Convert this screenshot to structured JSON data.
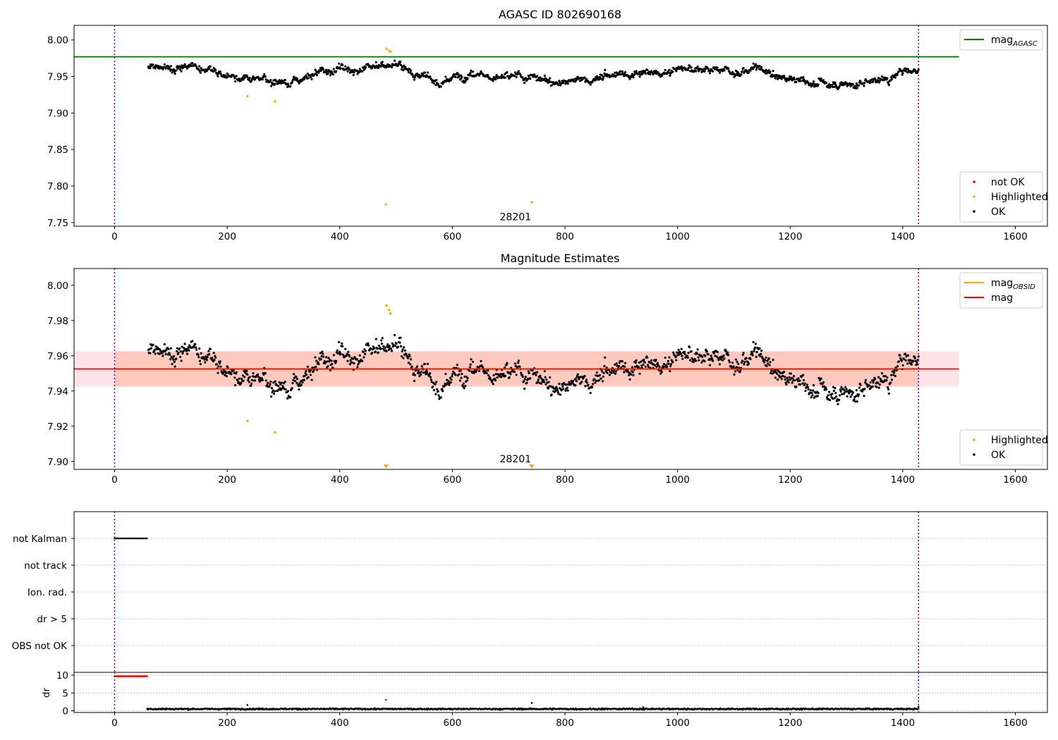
{
  "chart_data": [
    {
      "type": "scatter",
      "title": "AGASC ID 802690168",
      "xlabel": "",
      "ylabel": "",
      "xlim": [
        -72,
        1657
      ],
      "ylim": [
        7.745,
        8.02
      ],
      "xticks": [
        0,
        200,
        400,
        600,
        800,
        1000,
        1200,
        1400,
        1600
      ],
      "yticks": [
        7.75,
        7.8,
        7.85,
        7.9,
        7.95,
        8.0
      ],
      "ytick_labels": [
        "7.75",
        "7.80",
        "7.85",
        "7.90",
        "7.95",
        "8.00"
      ],
      "annotation": {
        "text": "28201",
        "x": 712,
        "y": 7.753
      },
      "obs_boundaries": [
        0,
        1428
      ],
      "hlines": [
        {
          "name_base": "mag",
          "name_sub": "AGASC",
          "value": 7.977,
          "xmin": -72,
          "xmax": 1500,
          "color": "#008000"
        }
      ],
      "series": [
        {
          "name": "not OK",
          "color": "#ff0000",
          "x": [],
          "y": []
        },
        {
          "name": "Highlighted",
          "color": "#ffa500",
          "x": [
            236,
            285,
            482,
            483,
            488,
            490,
            741
          ],
          "y": [
            7.923,
            7.916,
            7.775,
            7.988,
            7.985,
            7.984,
            7.778
          ]
        },
        {
          "name": "OK",
          "color": "#000000",
          "trend": {
            "x": [
              60,
              80,
              100,
              120,
              140,
              160,
              180,
              200,
              220,
              240,
              260,
              280,
              300,
              320,
              340,
              360,
              380,
              400,
              420,
              440,
              460,
              480,
              500,
              520,
              540,
              560,
              580,
              600,
              620,
              640,
              660,
              680,
              700,
              720,
              740,
              760,
              780,
              800,
              820,
              840,
              860,
              880,
              900,
              920,
              940,
              960,
              980,
              1000,
              1020,
              1040,
              1060,
              1080,
              1100,
              1120,
              1140,
              1160,
              1180,
              1200,
              1220,
              1240,
              1260,
              1280,
              1300,
              1320,
              1340,
              1360,
              1380,
              1400,
              1428
            ],
            "y": [
              7.965,
              7.968,
              7.958,
              7.965,
              7.967,
              7.962,
              7.959,
              7.955,
              7.947,
              7.945,
              7.944,
              7.943,
              7.942,
              7.943,
              7.948,
              7.955,
              7.958,
              7.962,
              7.958,
              7.961,
              7.962,
              7.965,
              7.968,
              7.958,
              7.953,
              7.945,
              7.938,
              7.948,
              7.952,
              7.955,
              7.953,
              7.95,
              7.948,
              7.952,
              7.95,
              7.944,
              7.942,
              7.943,
              7.944,
              7.946,
              7.948,
              7.952,
              7.955,
              7.954,
              7.955,
              7.956,
              7.957,
              7.96,
              7.963,
              7.96,
              7.958,
              7.96,
              7.955,
              7.958,
              7.962,
              7.955,
              7.948,
              7.945,
              7.946,
              7.942,
              7.94,
              7.94,
              7.939,
              7.94,
              7.944,
              7.946,
              7.95,
              7.958,
              7.958
            ],
            "noise": 0.005,
            "points": 1330
          }
        }
      ],
      "legends": [
        {
          "position": "upper-right",
          "entries": [
            {
              "base": "mag",
              "sub": "AGASC",
              "kind": "line",
              "color": "#008000"
            }
          ]
        },
        {
          "position": "lower-right",
          "entries": [
            {
              "label": "not OK",
              "kind": "dot",
              "color": "#ff0000"
            },
            {
              "label": "Highlighted",
              "kind": "dot",
              "color": "#ffa500"
            },
            {
              "label": "OK",
              "kind": "dot",
              "color": "#000000"
            }
          ]
        }
      ]
    },
    {
      "type": "scatter",
      "title": "Magnitude Estimates",
      "xlabel": "",
      "ylabel": "",
      "xlim": [
        -72,
        1657
      ],
      "ylim": [
        7.8955,
        8.0095
      ],
      "xticks": [
        0,
        200,
        400,
        600,
        800,
        1000,
        1200,
        1400,
        1600
      ],
      "yticks": [
        7.9,
        7.92,
        7.94,
        7.96,
        7.98,
        8.0
      ],
      "ytick_labels": [
        "7.90",
        "7.92",
        "7.94",
        "7.96",
        "7.98",
        "8.00"
      ],
      "annotation": {
        "text": "28201",
        "x": 712,
        "y": 7.8995
      },
      "obs_boundaries": [
        0,
        1428
      ],
      "bands": [
        {
          "ymin": 7.9425,
          "ymax": 7.9625,
          "xmin": -72,
          "xmax": 1500,
          "color": "#ffc0cb",
          "opacity": 0.45
        },
        {
          "ymin": 7.9425,
          "ymax": 7.9625,
          "xmin": 0,
          "xmax": 1428,
          "color": "#ffa07a",
          "opacity": 0.38
        }
      ],
      "hlines": [
        {
          "name_base": "mag",
          "name_sub": "OBSID",
          "value": 7.9525,
          "xmin": 0,
          "xmax": 1428,
          "color": "#ffa500"
        },
        {
          "name_base": "mag",
          "value": 7.9525,
          "xmin": -72,
          "xmax": 1500,
          "color": "#ff0000"
        }
      ],
      "series": [
        {
          "name": "Highlighted",
          "color": "#ffa500",
          "x": [
            236,
            285,
            483,
            488,
            490
          ],
          "y": [
            7.923,
            7.9165,
            7.9885,
            7.986,
            7.984
          ],
          "below_range_markers_x": [
            482,
            741
          ]
        },
        {
          "name": "OK",
          "color": "#000000",
          "same_trend_as_panel": 0,
          "points": 1330
        }
      ],
      "legends": [
        {
          "position": "upper-right",
          "entries": [
            {
              "base": "mag",
              "sub": "OBSID",
              "kind": "line",
              "color": "#ffa500"
            },
            {
              "label": "mag",
              "kind": "line",
              "color": "#ff0000"
            }
          ]
        },
        {
          "position": "lower-right",
          "entries": [
            {
              "label": "Highlighted",
              "kind": "dot",
              "color": "#ffa500"
            },
            {
              "label": "OK",
              "kind": "dot",
              "color": "#000000"
            }
          ]
        }
      ]
    },
    {
      "type": "scatter",
      "title": "",
      "xlabel": "",
      "ylabel": "",
      "xlim": [
        -72,
        1657
      ],
      "obs_boundaries": [
        0,
        1428
      ],
      "categories": [
        "not Kalman",
        "not track",
        "Ion. rad.",
        "dr > 5",
        "OBS not OK"
      ],
      "flags": [
        {
          "category": "not Kalman",
          "x_start": 0,
          "x_end": 58,
          "color": "#000000"
        }
      ]
    },
    {
      "type": "scatter",
      "title": "",
      "xlabel": "",
      "ylabel": "dr",
      "xlim": [
        -72,
        1657
      ],
      "ylim": [
        -0.5,
        10.8
      ],
      "xticks": [
        0,
        200,
        400,
        600,
        800,
        1000,
        1200,
        1400,
        1600
      ],
      "xtick_labels": [
        "0",
        "200",
        "400",
        "600",
        "800",
        "1000",
        "1200",
        "1400",
        "1600"
      ],
      "yticks": [
        0,
        5,
        10
      ],
      "ytick_labels": [
        "0",
        "5",
        "10"
      ],
      "obs_boundaries": [
        0,
        1428
      ],
      "series": [
        {
          "name": "not OK",
          "color": "#ff0000",
          "x_start": 0,
          "x_end": 58,
          "y": 9.7,
          "extra_x": [
            482
          ],
          "extra_y": [
            3.1
          ]
        },
        {
          "name": "OK",
          "color": "#000000",
          "x_start": 58,
          "x_end": 1428,
          "y_mean": 0.5,
          "noise": 0.25,
          "points": 1330,
          "spikes": [
            [
              236,
              1.6
            ],
            [
              741,
              2.2
            ],
            [
              939,
              1.0
            ],
            [
              1428,
              1.1
            ]
          ]
        }
      ]
    }
  ]
}
